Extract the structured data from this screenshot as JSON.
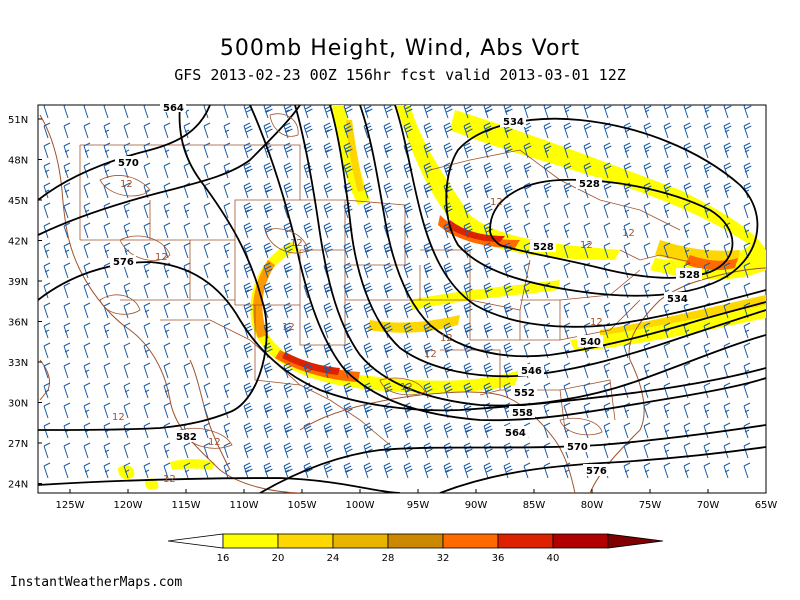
{
  "title": "500mb Height, Wind, Abs Vort",
  "subtitle": "GFS 2013-02-23 00Z 156hr fcst valid 2013-03-01 12Z",
  "credit": "InstantWeatherMaps.com",
  "lat_labels": [
    "51N",
    "48N",
    "45N",
    "42N",
    "39N",
    "36N",
    "33N",
    "30N",
    "27N",
    "24N"
  ],
  "lon_labels": [
    "125W",
    "120W",
    "115W",
    "110W",
    "105W",
    "100W",
    "95W",
    "90W",
    "85W",
    "80W",
    "75W",
    "70W",
    "65W"
  ],
  "height_labels": [
    "534",
    "528",
    "528",
    "528",
    "534",
    "540",
    "546",
    "552",
    "558",
    "564",
    "570",
    "576",
    "570",
    "576",
    "582",
    "564"
  ],
  "vort_labels": [
    "12",
    "12",
    "12",
    "12",
    "12",
    "12",
    "12",
    "12",
    "12",
    "12",
    "12",
    "12",
    "12",
    "12"
  ],
  "colorbar": {
    "values": [
      "16",
      "20",
      "24",
      "28",
      "32",
      "36",
      "40"
    ],
    "colors": [
      "#ffffff",
      "#ffff00",
      "#ffd700",
      "#e8b400",
      "#cc8800",
      "#ff6a00",
      "#dd2200",
      "#b00000",
      "#800000"
    ]
  },
  "colors": {
    "height_contour": "#000000",
    "wind_barb": "#1a5aa8",
    "borders": "#a0522d"
  }
}
